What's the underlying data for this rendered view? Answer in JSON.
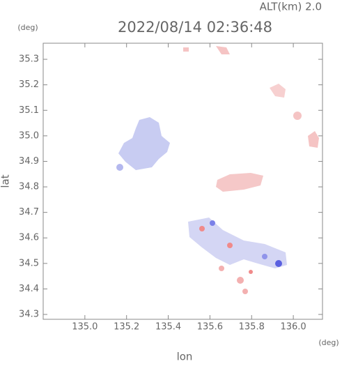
{
  "chart_data": {
    "type": "map",
    "title": "2022/08/14 02:36:48",
    "subtitle": "ALT(km) 2.0",
    "x_label": "lon",
    "y_label": "lat",
    "x_unit": "(deg)",
    "y_unit": "(deg)",
    "xlim": [
      134.8,
      136.14
    ],
    "ylim": [
      34.281,
      35.363
    ],
    "xticks": [
      {
        "value": 135.0,
        "label": "135.0"
      },
      135.2,
      135.4,
      135.6,
      135.8,
      {
        "value": 136.0,
        "label": "136.0"
      }
    ],
    "yticks": [
      34.3,
      34.4,
      34.5,
      34.6,
      34.7,
      34.8,
      34.9,
      {
        "value": 35.0,
        "label": "35.0"
      },
      35.1,
      35.2,
      35.3
    ]
  }
}
